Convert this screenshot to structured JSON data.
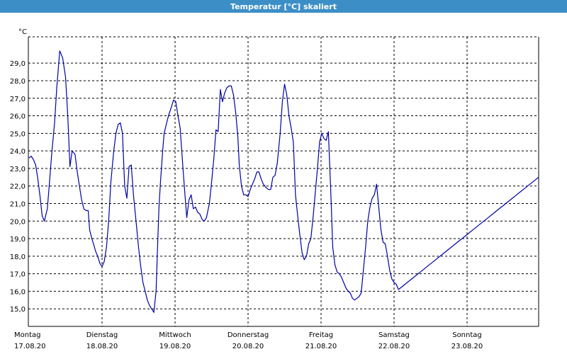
{
  "window": {
    "title": "Temperatur [°C] skaliert"
  },
  "colors": {
    "titlebar": "#3c8fc6",
    "series": "#0000aa"
  },
  "chart_data": {
    "type": "line",
    "title": "Temperatur [°C] skaliert",
    "ylabel": "°C",
    "ylim": [
      14.0,
      30.5
    ],
    "yticks": [
      "15,0",
      "16,0",
      "17,0",
      "18,0",
      "19,0",
      "20,0",
      "21,0",
      "22,0",
      "23,0",
      "24,0",
      "25,0",
      "26,0",
      "27,0",
      "28,0",
      "29,0"
    ],
    "yticks_values": [
      15,
      16,
      17,
      18,
      19,
      20,
      21,
      22,
      23,
      24,
      25,
      26,
      27,
      28,
      29
    ],
    "xlim": [
      0,
      7
    ],
    "xticks": [
      {
        "day": "Montag",
        "date": "17.08.20"
      },
      {
        "day": "Dienstag",
        "date": "18.08.20"
      },
      {
        "day": "Mittwoch",
        "date": "19.08.20"
      },
      {
        "day": "Donnerstag",
        "date": "20.08.20"
      },
      {
        "day": "Freitag",
        "date": "21.08.20"
      },
      {
        "day": "Samstag",
        "date": "22.08.20"
      },
      {
        "day": "Sonntag",
        "date": "23.08.20"
      }
    ],
    "grid": true,
    "series": [
      {
        "x": [
          0.0,
          0.03,
          0.06,
          0.09,
          0.12,
          0.15,
          0.18,
          0.21,
          0.25,
          0.28,
          0.31,
          0.35,
          0.38,
          0.42,
          0.46,
          0.5,
          0.53,
          0.56,
          0.59,
          0.63,
          0.66,
          0.69,
          0.72,
          0.75,
          0.78,
          0.81,
          0.83,
          0.86,
          0.89,
          0.91,
          0.94,
          0.97,
          1.0,
          1.03,
          1.06,
          1.09,
          1.12,
          1.16,
          1.19,
          1.22,
          1.25,
          1.28,
          1.31,
          1.34,
          1.37,
          1.4,
          1.43,
          1.47,
          1.5,
          1.53,
          1.56,
          1.59,
          1.62,
          1.65,
          1.68,
          1.71,
          1.74,
          1.76,
          1.78,
          1.8,
          1.83,
          1.85,
          1.88,
          1.91,
          1.95,
          1.98,
          2.01,
          2.04,
          2.07,
          2.1,
          2.13,
          2.16,
          2.19,
          2.22,
          2.25,
          2.28,
          2.31,
          2.34,
          2.37,
          2.4,
          2.43,
          2.47,
          2.5,
          2.53,
          2.56,
          2.59,
          2.62,
          2.65,
          2.68,
          2.71,
          2.74,
          2.77,
          2.8,
          2.83,
          2.86,
          2.88,
          2.91,
          2.94,
          2.97,
          3.0,
          3.03,
          3.06,
          3.09,
          3.12,
          3.15,
          3.18,
          3.21,
          3.25,
          3.28,
          3.31,
          3.34,
          3.37,
          3.4,
          3.44,
          3.47,
          3.5,
          3.53,
          3.56,
          3.59,
          3.62,
          3.65,
          3.68,
          3.71,
          3.74,
          3.77,
          3.8,
          3.83,
          3.86,
          3.89,
          3.92,
          3.95,
          3.98,
          4.01,
          4.04,
          4.07,
          4.1,
          4.13,
          4.16,
          4.19,
          4.22,
          4.25,
          4.28,
          4.31,
          4.34,
          4.37,
          4.4,
          4.43,
          4.46,
          4.49,
          4.52,
          4.55,
          4.58,
          4.61,
          4.64,
          4.67,
          4.7,
          4.73,
          4.76,
          4.79,
          4.82,
          4.85,
          4.88,
          4.91,
          4.94,
          4.97,
          5.0,
          5.03,
          5.06,
          5.09,
          5.12,
          5.15,
          5.18,
          5.21,
          5.24,
          5.27,
          5.3,
          5.33,
          5.36,
          5.39,
          5.42,
          5.45,
          5.48,
          5.51,
          5.54,
          5.57,
          5.6,
          5.63,
          5.66,
          5.69,
          5.72,
          5.75,
          5.78,
          5.81,
          5.84,
          5.87,
          5.9,
          5.93,
          5.96,
          5.99,
          6.02,
          6.05,
          6.08,
          6.11,
          6.14,
          6.17,
          6.2,
          6.23,
          6.26,
          6.29,
          6.32,
          6.35,
          6.38,
          6.41,
          6.44,
          6.47,
          6.5,
          6.53,
          6.56,
          6.59,
          6.62,
          6.65,
          6.68,
          6.71,
          6.74,
          6.77,
          6.8,
          6.83,
          6.86,
          6.89,
          6.92,
          6.95,
          6.98
        ],
        "values": [
          23.6,
          23.7,
          23.5,
          23.2,
          22.4,
          21.4,
          20.3,
          20.0,
          20.7,
          22.2,
          23.8,
          25.6,
          27.6,
          29.7,
          29.3,
          28.2,
          26.0,
          23.1,
          24.0,
          23.8,
          22.8,
          22.0,
          21.2,
          20.7,
          20.6,
          20.6,
          19.5,
          19.0,
          18.6,
          18.3,
          18.0,
          17.6,
          17.4,
          17.7,
          18.5,
          20.0,
          22.2,
          24.0,
          25.0,
          25.5,
          25.6,
          25.0,
          22.0,
          21.3,
          23.1,
          23.2,
          21.5,
          19.8,
          18.5,
          17.4,
          16.5,
          16.0,
          15.5,
          15.2,
          15.0,
          14.8,
          16.0,
          18.5,
          20.8,
          22.2,
          24.0,
          25.0,
          25.5,
          26.0,
          26.5,
          26.9,
          26.8,
          26.0,
          25.3,
          23.5,
          21.8,
          20.2,
          21.2,
          21.5,
          20.7,
          20.8,
          20.5,
          20.4,
          20.1,
          20.0,
          20.2,
          21.0,
          22.2,
          23.5,
          25.2,
          25.1,
          27.5,
          26.8,
          27.3,
          27.6,
          27.7,
          27.7,
          27.2,
          26.2,
          24.8,
          23.2,
          22.0,
          21.5,
          21.5,
          21.4,
          21.8,
          22.1,
          22.4,
          22.8,
          22.8,
          22.4,
          22.1,
          21.9,
          21.8,
          21.8,
          22.5,
          22.6,
          23.3,
          25.0,
          26.8,
          27.8,
          27.2,
          26.0,
          25.3,
          24.5,
          21.5,
          20.3,
          19.2,
          18.2,
          17.8,
          18.0,
          18.7,
          19.0,
          20.2,
          21.6,
          23.0,
          24.5,
          25.0,
          24.7,
          24.6,
          25.1,
          22.0,
          18.5,
          17.5,
          17.1,
          17.0,
          16.8,
          16.5,
          16.2,
          16.0,
          15.9,
          15.6,
          15.5,
          15.6,
          15.7,
          15.9,
          17.2,
          18.5,
          20.0,
          20.8,
          21.3,
          21.5,
          22.1,
          20.8,
          19.5,
          18.8,
          18.7,
          18.0,
          17.2,
          16.7,
          16.5,
          16.4,
          16.1,
          16.2,
          16.3,
          16.4,
          16.5,
          16.6,
          16.7,
          16.8,
          16.9,
          17.0,
          17.1,
          17.2,
          17.3,
          17.4,
          17.5,
          17.6,
          17.7,
          17.8,
          17.9,
          18.0,
          18.1,
          18.2,
          18.3,
          18.4,
          18.5,
          18.6,
          18.7,
          18.8,
          18.9,
          19.0,
          19.1,
          19.2,
          19.3,
          19.4,
          19.5,
          19.6,
          19.7,
          19.8,
          19.9,
          20.0,
          20.1,
          20.2,
          20.3,
          20.4,
          20.5,
          20.6,
          20.7,
          20.8,
          20.9,
          21.0,
          21.1,
          21.2,
          21.3,
          21.4,
          21.5,
          21.6,
          21.7,
          21.8,
          21.9,
          22.0,
          22.1,
          22.2,
          22.3,
          22.4,
          22.5
        ]
      }
    ]
  }
}
